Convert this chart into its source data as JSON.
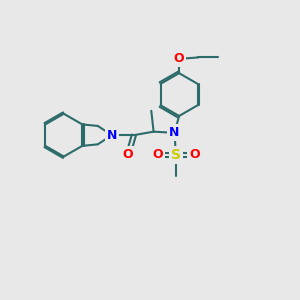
{
  "bg_color": "#e8e8e8",
  "bond_color": "#2d6b6b",
  "bond_width": 1.5,
  "atom_colors": {
    "N": "#0000ff",
    "O": "#ff0000",
    "S": "#cccc00"
  },
  "figsize": [
    3.0,
    3.0
  ],
  "dpi": 100,
  "xlim": [
    0,
    10
  ],
  "ylim": [
    0,
    10
  ]
}
